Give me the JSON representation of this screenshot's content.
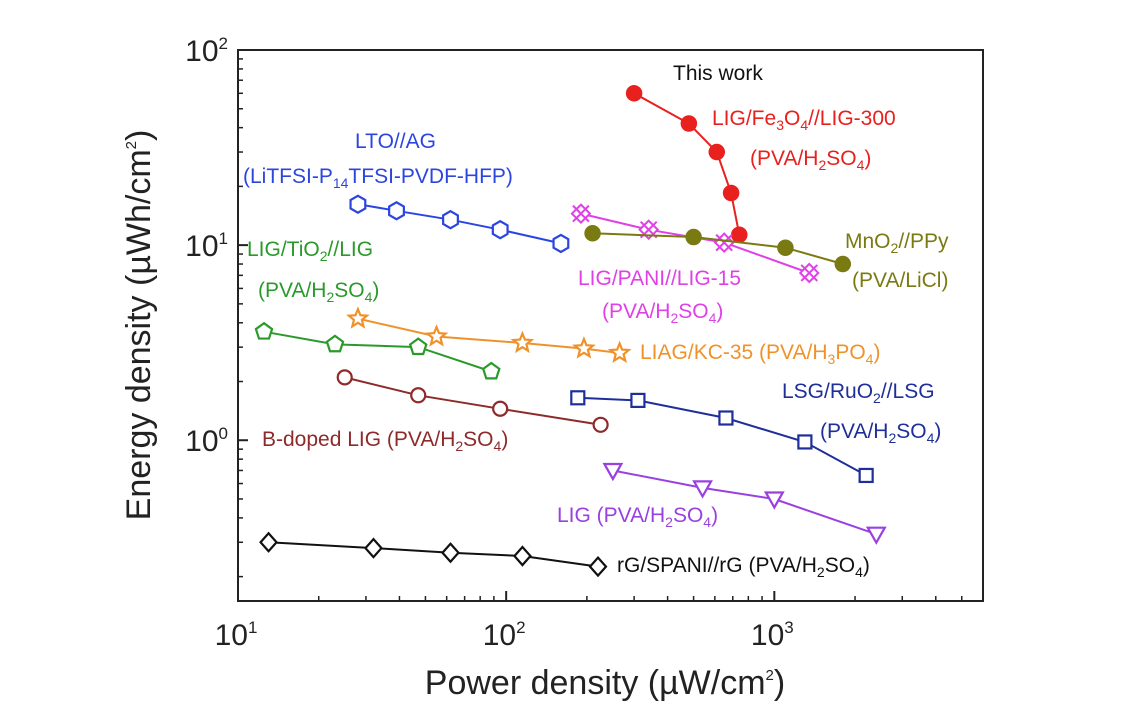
{
  "chart_data": {
    "type": "scatter",
    "title": "",
    "xlabel": {
      "prefix": "Power density (µW/cm",
      "sup": "2",
      "suffix": ")"
    },
    "ylabel": {
      "prefix": "Energy density (µWh/cm",
      "sup": "2",
      "suffix": ")"
    },
    "xscale": "log",
    "yscale": "log",
    "xlim": [
      10,
      6000
    ],
    "ylim": [
      0.15,
      100
    ],
    "xticks": [
      {
        "value": 10,
        "base": "10",
        "exp": "1"
      },
      {
        "value": 100,
        "base": "10",
        "exp": "2"
      },
      {
        "value": 1000,
        "base": "10",
        "exp": "3"
      }
    ],
    "yticks": [
      {
        "value": 1,
        "base": "10",
        "exp": "0"
      },
      {
        "value": 10,
        "base": "10",
        "exp": "1"
      },
      {
        "value": 100,
        "base": "10",
        "exp": "2"
      }
    ],
    "series": [
      {
        "name": "LIG/Fe3O4//LIG-300 (PVA/H2SO4)",
        "color": "#e8201e",
        "marker": "filled-circle",
        "x": [
          300,
          480,
          610,
          690,
          740
        ],
        "y": [
          60,
          42,
          30,
          18.5,
          11.3
        ]
      },
      {
        "name": "LTO//AG (LiTFSI-P14TFSI-PVDF-HFP)",
        "color": "#2b45e0",
        "marker": "hexagon",
        "x": [
          28,
          39,
          62,
          95,
          160
        ],
        "y": [
          16.2,
          15.0,
          13.5,
          12.0,
          10.2
        ]
      },
      {
        "name": "LIG/PANI//LIG-15 (PVA/H2SO4)",
        "color": "#e040e8",
        "marker": "x-diamond",
        "x": [
          190,
          340,
          650,
          1350
        ],
        "y": [
          14.5,
          12.0,
          10.3,
          7.2
        ]
      },
      {
        "name": "MnO2//PPy (PVA/LiCl)",
        "color": "#7a7a12",
        "marker": "filled-circle",
        "x": [
          210,
          500,
          1100,
          1800
        ],
        "y": [
          11.5,
          11.0,
          9.7,
          8.0
        ]
      },
      {
        "name": "LIG/TiO2//LIG (PVA/H2SO4)",
        "color": "#2a9a2a",
        "marker": "pentagon",
        "x": [
          12.5,
          23,
          47,
          88
        ],
        "y": [
          3.6,
          3.1,
          3.0,
          2.25
        ]
      },
      {
        "name": "LIAG/KC-35 (PVA/H3PO4)",
        "color": "#f0922a",
        "marker": "star",
        "x": [
          28,
          55,
          115,
          195,
          265
        ],
        "y": [
          4.2,
          3.4,
          3.15,
          2.95,
          2.8
        ]
      },
      {
        "name": "B-doped LIG (PVA/H2SO4)",
        "color": "#8e2a2a",
        "marker": "circle",
        "x": [
          25,
          47,
          95,
          225
        ],
        "y": [
          2.1,
          1.7,
          1.45,
          1.2
        ]
      },
      {
        "name": "LSG/RuO2//LSG (PVA/H2SO4)",
        "color": "#1e2f9a",
        "marker": "square",
        "x": [
          185,
          310,
          660,
          1300,
          2200
        ],
        "y": [
          1.65,
          1.6,
          1.3,
          0.98,
          0.66
        ]
      },
      {
        "name": "LIG (PVA/H2SO4)",
        "color": "#9a40e0",
        "marker": "triangle-down",
        "x": [
          250,
          540,
          1000,
          2400
        ],
        "y": [
          0.7,
          0.57,
          0.5,
          0.33
        ]
      },
      {
        "name": "rG/SPANI//rG (PVA/H2SO4)",
        "color": "#111111",
        "marker": "diamond",
        "x": [
          13,
          32,
          62,
          115,
          220
        ],
        "y": [
          0.3,
          0.28,
          0.265,
          0.255,
          0.225
        ]
      }
    ],
    "annotations": [
      {
        "id": "this-work",
        "color": "#111111",
        "parts": [
          {
            "t": "This work"
          }
        ]
      },
      {
        "id": "fe3o4-1",
        "color": "#e8201e",
        "parts": [
          {
            "t": "LIG/Fe"
          },
          {
            "t": "3",
            "s": "sub"
          },
          {
            "t": "O"
          },
          {
            "t": "4",
            "s": "sub"
          },
          {
            "t": "//LIG-300"
          }
        ]
      },
      {
        "id": "fe3o4-2",
        "color": "#e8201e",
        "parts": [
          {
            "t": "(PVA/H"
          },
          {
            "t": "2",
            "s": "sub"
          },
          {
            "t": "SO"
          },
          {
            "t": "4",
            "s": "sub"
          },
          {
            "t": ")"
          }
        ]
      },
      {
        "id": "lto-1",
        "color": "#2b45e0",
        "parts": [
          {
            "t": "LTO//AG"
          }
        ]
      },
      {
        "id": "lto-2",
        "color": "#2b45e0",
        "parts": [
          {
            "t": "(LiTFSI-P"
          },
          {
            "t": "14",
            "s": "sub"
          },
          {
            "t": "TFSI-PVDF-HFP)"
          }
        ]
      },
      {
        "id": "tio2-1",
        "color": "#2a9a2a",
        "parts": [
          {
            "t": "LIG/TiO"
          },
          {
            "t": "2",
            "s": "sub"
          },
          {
            "t": "//LIG"
          }
        ]
      },
      {
        "id": "tio2-2",
        "color": "#2a9a2a",
        "parts": [
          {
            "t": "(PVA/H"
          },
          {
            "t": "2",
            "s": "sub"
          },
          {
            "t": "SO"
          },
          {
            "t": "4",
            "s": "sub"
          },
          {
            "t": ")"
          }
        ]
      },
      {
        "id": "mno2-1",
        "color": "#7a7a12",
        "parts": [
          {
            "t": "MnO"
          },
          {
            "t": "2",
            "s": "sub"
          },
          {
            "t": "//PPy"
          }
        ]
      },
      {
        "id": "mno2-2",
        "color": "#7a7a12",
        "parts": [
          {
            "t": "(PVA/LiCl)"
          }
        ]
      },
      {
        "id": "pani-1",
        "color": "#e040e8",
        "parts": [
          {
            "t": "LIG/PANI//LIG-15"
          }
        ]
      },
      {
        "id": "pani-2",
        "color": "#e040e8",
        "parts": [
          {
            "t": "(PVA/H"
          },
          {
            "t": "2",
            "s": "sub"
          },
          {
            "t": "SO"
          },
          {
            "t": "4",
            "s": "sub"
          },
          {
            "t": ")"
          }
        ]
      },
      {
        "id": "liag",
        "color": "#f0922a",
        "parts": [
          {
            "t": "LIAG/KC-35 (PVA/H"
          },
          {
            "t": "3",
            "s": "sub"
          },
          {
            "t": "PO"
          },
          {
            "t": "4",
            "s": "sub"
          },
          {
            "t": ")"
          }
        ]
      },
      {
        "id": "lsg-1",
        "color": "#1e2f9a",
        "parts": [
          {
            "t": "LSG/RuO"
          },
          {
            "t": "2",
            "s": "sub"
          },
          {
            "t": "//LSG"
          }
        ]
      },
      {
        "id": "lsg-2",
        "color": "#1e2f9a",
        "parts": [
          {
            "t": "(PVA/H"
          },
          {
            "t": "2",
            "s": "sub"
          },
          {
            "t": "SO"
          },
          {
            "t": "4",
            "s": "sub"
          },
          {
            "t": ")"
          }
        ]
      },
      {
        "id": "bdoped",
        "color": "#8e2a2a",
        "parts": [
          {
            "t": "B-doped LIG (PVA/H"
          },
          {
            "t": "2",
            "s": "sub"
          },
          {
            "t": "SO"
          },
          {
            "t": "4",
            "s": "sub"
          },
          {
            "t": ")"
          }
        ]
      },
      {
        "id": "lig",
        "color": "#9a40e0",
        "parts": [
          {
            "t": "LIG (PVA/H"
          },
          {
            "t": "2",
            "s": "sub"
          },
          {
            "t": "SO"
          },
          {
            "t": "4",
            "s": "sub"
          },
          {
            "t": ")"
          }
        ]
      },
      {
        "id": "rg",
        "color": "#111111",
        "parts": [
          {
            "t": "rG/SPANI//rG (PVA/H"
          },
          {
            "t": "2",
            "s": "sub"
          },
          {
            "t": "SO"
          },
          {
            "t": "4",
            "s": "sub"
          },
          {
            "t": ")"
          }
        ]
      }
    ]
  }
}
